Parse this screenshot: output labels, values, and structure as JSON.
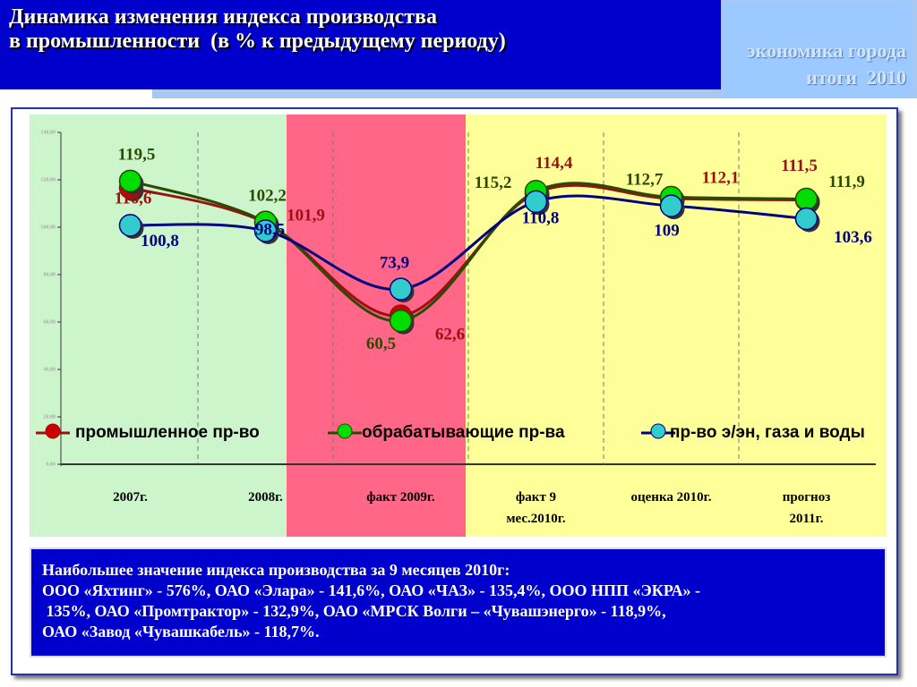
{
  "header": {
    "title_lines": [
      "Динамика изменения индекса производства",
      "в промышленности  (в % к предыдущему периоду)"
    ],
    "badge_lines": [
      "экономика города",
      "итоги  2010"
    ]
  },
  "chart_data": {
    "type": "line",
    "categories": [
      "2007г.",
      "2008г.",
      "факт 2009г.",
      "факт 9\nмес.2010г.",
      "оценка 2010г.",
      "прогноз\n2011г."
    ],
    "series": [
      {
        "name": "промышленное пр-во",
        "color": "#cc0000",
        "values": [
          116.6,
          101.9,
          62.6,
          114.4,
          112.1,
          111.5
        ],
        "value_labels": [
          "116,6",
          "101,9",
          "62,6",
          "114,4",
          "112,1",
          "111,5"
        ]
      },
      {
        "name": "обрабатывающие пр-ва",
        "color": "#00dd00",
        "values": [
          119.5,
          102.2,
          60.5,
          115.2,
          112.7,
          111.9
        ],
        "value_labels": [
          "119,5",
          "102,2",
          "60,5",
          "115,2",
          "112,7",
          "111,9"
        ]
      },
      {
        "name": "пр-во э/эн, газа и воды",
        "color": "#33cccc",
        "values": [
          100.8,
          98.5,
          73.9,
          110.8,
          109,
          103.6
        ],
        "value_labels": [
          "100,8",
          "98,5",
          "73,9",
          "110,8",
          "109",
          "103,6"
        ]
      }
    ],
    "ylim": [
      0,
      140
    ],
    "yticks": [
      {
        "value": 0,
        "label": "0,00"
      },
      {
        "value": 20,
        "label": "20,00"
      },
      {
        "value": 40,
        "label": "40,00"
      },
      {
        "value": 60,
        "label": "60,00"
      },
      {
        "value": 80,
        "label": "80,00"
      },
      {
        "value": 100,
        "label": "100,00"
      },
      {
        "value": 120,
        "label": "120,00"
      },
      {
        "value": 140,
        "label": "140,00"
      }
    ],
    "grid": false
  },
  "note": {
    "lines": [
      "Наибольшее значение индекса производства за 9 месяцев 2010г:",
      "ООО «Яхтинг» - 576%, ОАО «Элара» - 141,6%, ОАО «ЧАЗ» - 135,4%, ООО НПП «ЭКРА» -",
      " 135%, ОАО «Промтрактор» - 132,9%, ОАО «МРСК Волги – «Чувашэнерго» - 118,9%,",
      "ОАО «Завод «Чувашкабель» - 118,7%."
    ]
  }
}
